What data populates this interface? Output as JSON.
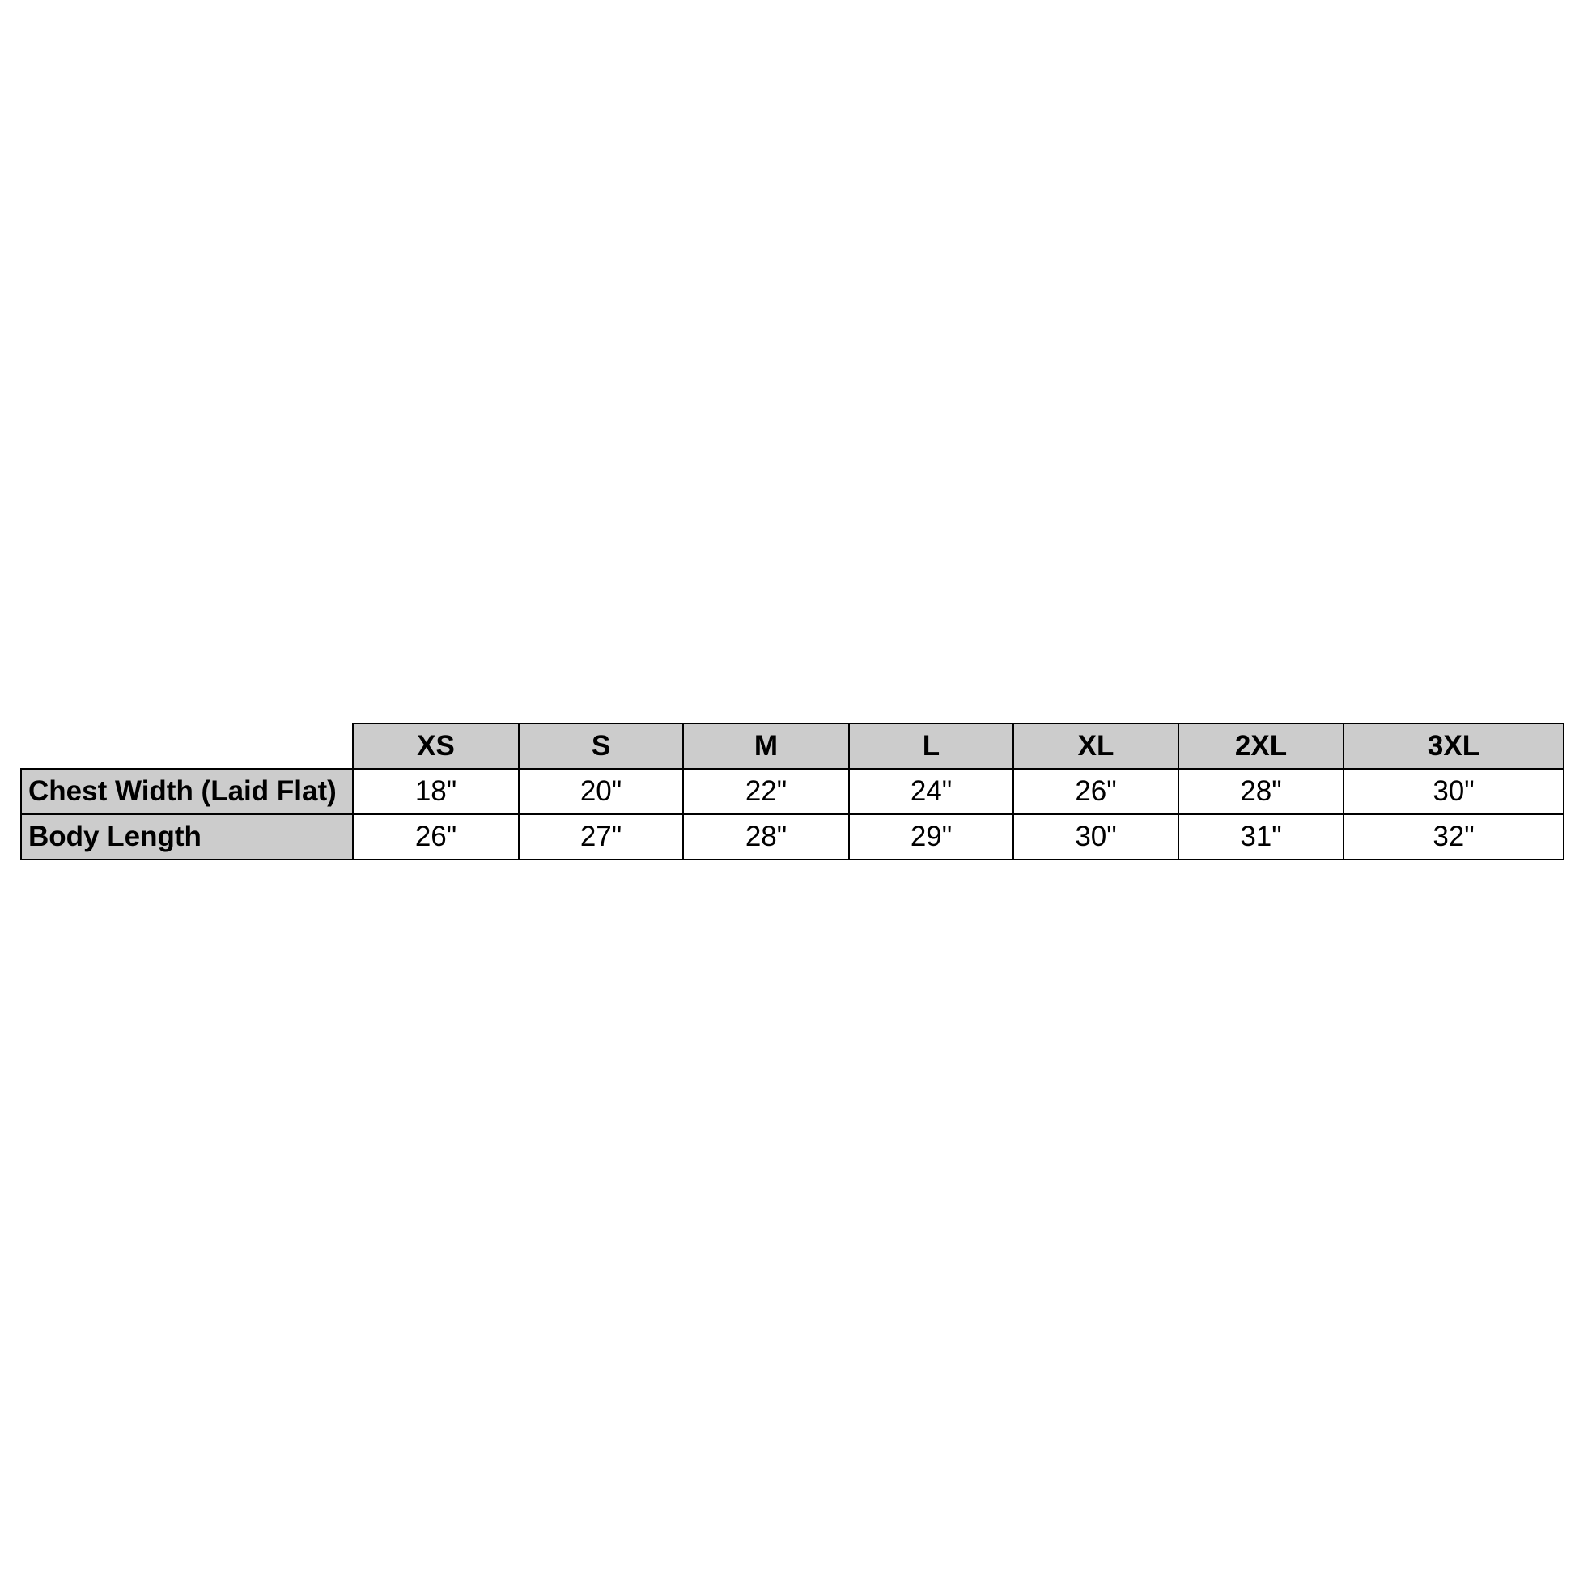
{
  "size_chart": {
    "headers": [
      "XS",
      "S",
      "M",
      "L",
      "XL",
      "2XL",
      "3XL"
    ],
    "rows": [
      {
        "label": "Chest Width (Laid Flat)",
        "values": [
          "18\"",
          "20\"",
          "22\"",
          "24\"",
          "26\"",
          "28\"",
          "30\""
        ]
      },
      {
        "label": "Body Length",
        "values": [
          "26\"",
          "27\"",
          "28\"",
          "29\"",
          "30\"",
          "31\"",
          "32\""
        ]
      }
    ],
    "header_color": "#cccccc"
  }
}
